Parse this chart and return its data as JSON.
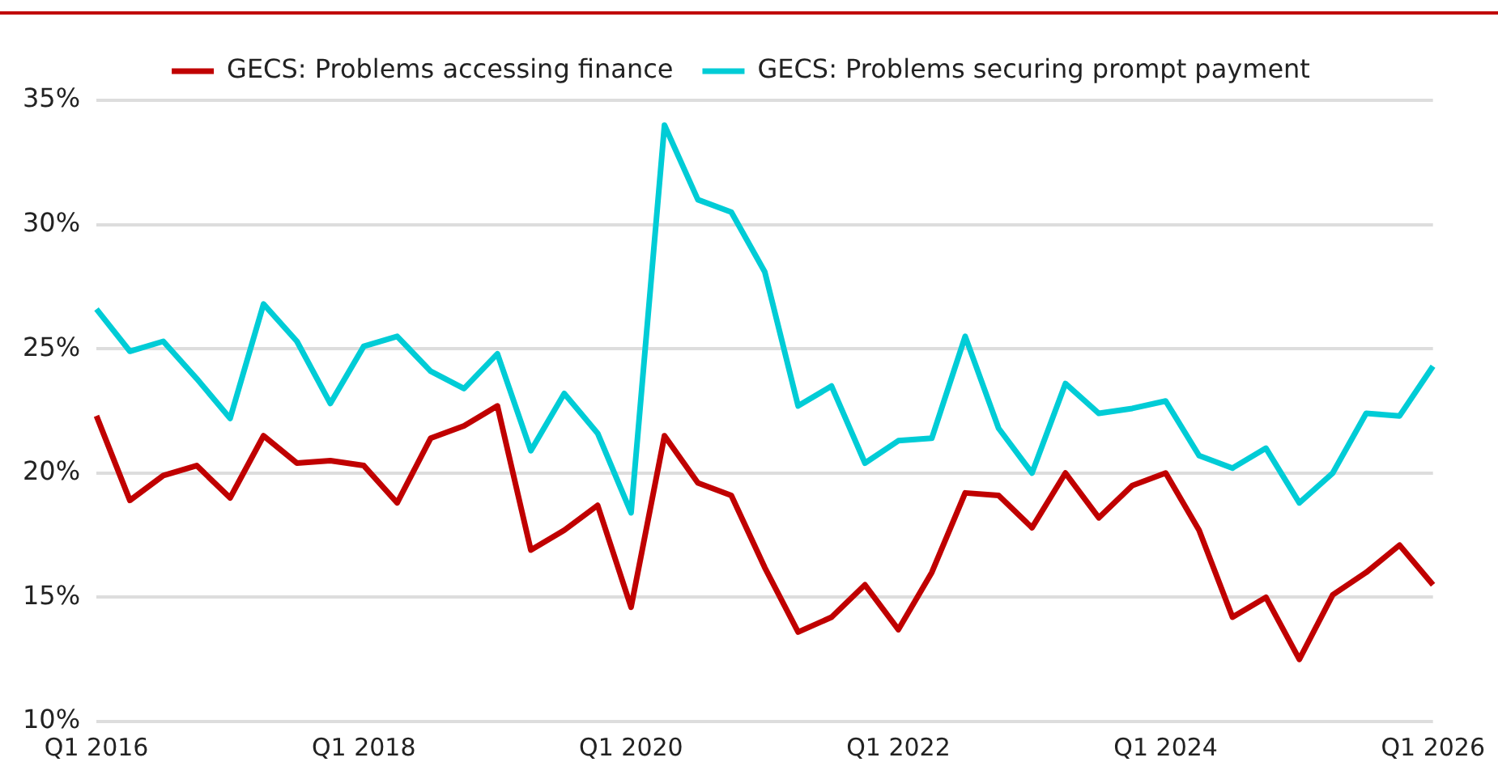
{
  "chart_data": {
    "type": "line",
    "categories": [
      "Q1 2016",
      null,
      null,
      null,
      null,
      null,
      null,
      null,
      "Q1 2018",
      null,
      null,
      null,
      null,
      null,
      null,
      null,
      "Q1 2020",
      null,
      null,
      null,
      null,
      null,
      null,
      null,
      "Q1 2022",
      null,
      null,
      null,
      null,
      null,
      null,
      null,
      "Q1 2024",
      null,
      null,
      null,
      null,
      null,
      null,
      null,
      "Q1 2026"
    ],
    "series": [
      {
        "name": "GECS: Problems accessing finance",
        "color": "#c00000",
        "values": [
          22.3,
          18.9,
          19.9,
          20.3,
          19.0,
          21.5,
          20.4,
          20.5,
          20.3,
          18.8,
          21.4,
          21.9,
          22.7,
          16.9,
          17.7,
          18.7,
          14.6,
          21.5,
          19.6,
          19.1,
          16.2,
          13.6,
          14.2,
          15.5,
          13.7,
          16.0,
          19.2,
          19.1,
          17.8,
          20.0,
          18.2,
          19.5,
          20.0,
          17.7,
          14.2,
          15.0,
          12.5,
          15.1,
          16.0,
          17.1,
          15.5
        ]
      },
      {
        "name": "GECS: Problems securing prompt payment",
        "color": "#00ccd6",
        "values": [
          26.6,
          24.9,
          25.3,
          23.8,
          22.2,
          26.8,
          25.3,
          22.8,
          25.1,
          25.5,
          24.1,
          23.4,
          24.8,
          20.9,
          23.2,
          21.6,
          18.4,
          34.0,
          31.0,
          30.5,
          28.1,
          22.7,
          23.5,
          20.4,
          21.3,
          21.4,
          25.5,
          21.8,
          20.0,
          23.6,
          22.4,
          22.6,
          22.9,
          20.7,
          20.2,
          21.0,
          18.8,
          20.0,
          22.4,
          22.3,
          24.3
        ]
      }
    ],
    "ylim": [
      10,
      35
    ],
    "yticks": [
      {
        "value": 10,
        "label": "10%"
      },
      {
        "value": 15,
        "label": "15%"
      },
      {
        "value": 20,
        "label": "20%"
      },
      {
        "value": 25,
        "label": "25%"
      },
      {
        "value": 30,
        "label": "30%"
      },
      {
        "value": 35,
        "label": "35%"
      }
    ],
    "grid": "y",
    "legend": "top",
    "marker": "none",
    "line_style": "solid"
  }
}
